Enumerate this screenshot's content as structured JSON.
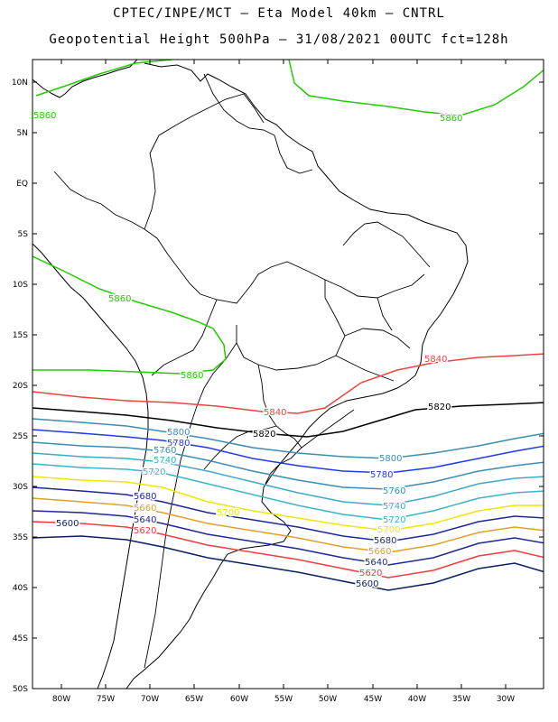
{
  "title_line1": "CPTEC/INPE/MCT –  Eta Model 40km – CNTRL",
  "title_line2": "Geopotential Height 500hPa – 31/08/2021 00UTC fct=128h",
  "lat_ticks": [
    "10N",
    "5N",
    "EQ",
    "5S",
    "10S",
    "15S",
    "20S",
    "25S",
    "30S",
    "35S",
    "40S",
    "45S",
    "50S"
  ],
  "lon_ticks": [
    "80W",
    "75W",
    "70W",
    "65W",
    "60W",
    "55W",
    "50W",
    "45W",
    "40W",
    "35W",
    "30W"
  ],
  "contour_labels": [
    {
      "text": "5860",
      "color": "#22cc00"
    },
    {
      "text": "5860",
      "color": "#22cc00"
    },
    {
      "text": "5860",
      "color": "#22cc00"
    },
    {
      "text": "5860",
      "color": "#22cc00"
    },
    {
      "text": "5840",
      "color": "#e8463c"
    },
    {
      "text": "5840",
      "color": "#e8463c"
    },
    {
      "text": "5820",
      "color": "#000000"
    },
    {
      "text": "5820",
      "color": "#000000"
    },
    {
      "text": "5800",
      "color": "#3c8cb4"
    },
    {
      "text": "5800",
      "color": "#3c8cb4"
    },
    {
      "text": "5780",
      "color": "#1e3ce6"
    },
    {
      "text": "5780",
      "color": "#1e3ce6"
    },
    {
      "text": "5760",
      "color": "#3c8cb4"
    },
    {
      "text": "5760",
      "color": "#3c8cb4"
    },
    {
      "text": "5740",
      "color": "#3caac8"
    },
    {
      "text": "5740",
      "color": "#3caac8"
    },
    {
      "text": "5720",
      "color": "#3cb4c8"
    },
    {
      "text": "5720",
      "color": "#3cb4c8"
    },
    {
      "text": "5700",
      "color": "#f0e600"
    },
    {
      "text": "5700",
      "color": "#f0e600"
    },
    {
      "text": "5680",
      "color": "#1e2896"
    },
    {
      "text": "5680",
      "color": "#1e2896"
    },
    {
      "text": "5660",
      "color": "#e1a028"
    },
    {
      "text": "5660",
      "color": "#e1a028"
    },
    {
      "text": "5640",
      "color": "#1e2896"
    },
    {
      "text": "5640",
      "color": "#1e2896"
    },
    {
      "text": "5620",
      "color": "#f03c3c"
    },
    {
      "text": "5620",
      "color": "#f03c3c"
    },
    {
      "text": "5600",
      "color": "#0a1e64"
    },
    {
      "text": "5600",
      "color": "#0a1e64"
    }
  ]
}
